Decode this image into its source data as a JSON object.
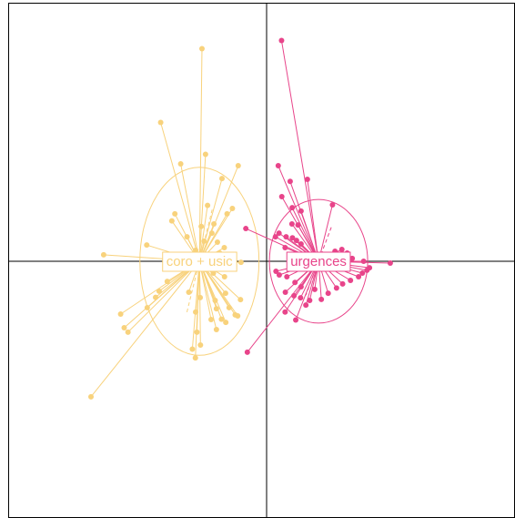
{
  "chart_data": {
    "type": "scatter",
    "title": "",
    "xlabel": "",
    "ylabel": "",
    "xlim": [
      -1.0,
      1.0
    ],
    "ylim": [
      -1.0,
      1.0
    ],
    "grid": false,
    "legend": "none",
    "axes_lines_at_zero": true,
    "groups": [
      {
        "label": "coro + usic",
        "color": "#f8d27c",
        "centroid": [
          -0.265,
          0.0
        ],
        "ellipse": {
          "rx": 0.235,
          "ry": 0.365,
          "angle_deg": 0
        },
        "points": [
          [
            -0.255,
            0.825
          ],
          [
            -0.418,
            0.539
          ],
          [
            -0.241,
            0.415
          ],
          [
            -0.112,
            0.371
          ],
          [
            -0.339,
            0.378
          ],
          [
            -0.176,
            0.321
          ],
          [
            -0.362,
            0.184
          ],
          [
            -0.374,
            0.157
          ],
          [
            -0.233,
            0.217
          ],
          [
            -0.135,
            0.205
          ],
          [
            -0.156,
            0.184
          ],
          [
            -0.208,
            0.145
          ],
          [
            -0.314,
            0.095
          ],
          [
            -0.258,
            0.135
          ],
          [
            -0.216,
            0.109
          ],
          [
            -0.194,
            0.074
          ],
          [
            -0.167,
            0.053
          ],
          [
            -0.247,
            0.078
          ],
          [
            -0.28,
            0.043
          ],
          [
            -0.473,
            0.063
          ],
          [
            -0.643,
            0.025
          ],
          [
            -0.223,
            0.025
          ],
          [
            -0.205,
            0.011
          ],
          [
            -0.185,
            0.032
          ],
          [
            -0.145,
            0.018
          ],
          [
            -0.127,
            0.004
          ],
          [
            -0.101,
            -0.004
          ],
          [
            -0.24,
            -0.032
          ],
          [
            -0.21,
            -0.046
          ],
          [
            -0.166,
            -0.06
          ],
          [
            -0.392,
            -0.078
          ],
          [
            -0.424,
            -0.116
          ],
          [
            -0.438,
            -0.14
          ],
          [
            -0.471,
            -0.18
          ],
          [
            -0.576,
            -0.205
          ],
          [
            -0.203,
            -0.152
          ],
          [
            -0.162,
            -0.124
          ],
          [
            -0.148,
            -0.18
          ],
          [
            -0.124,
            -0.208
          ],
          [
            -0.219,
            -0.226
          ],
          [
            -0.198,
            -0.184
          ],
          [
            -0.178,
            -0.225
          ],
          [
            -0.114,
            -0.212
          ],
          [
            -0.198,
            -0.265
          ],
          [
            -0.275,
            -0.275
          ],
          [
            -0.161,
            -0.237
          ],
          [
            -0.103,
            -0.149
          ],
          [
            -0.28,
            -0.197
          ],
          [
            -0.262,
            -0.141
          ],
          [
            -0.307,
            -0.12
          ],
          [
            -0.547,
            -0.275
          ],
          [
            -0.562,
            -0.258
          ],
          [
            -0.261,
            -0.325
          ],
          [
            -0.293,
            -0.341
          ],
          [
            -0.281,
            -0.375
          ],
          [
            -0.693,
            -0.526
          ]
        ]
      },
      {
        "label": "urgences",
        "color": "#e8448a",
        "centroid": [
          0.205,
          0.0
        ],
        "ellipse": {
          "rx": 0.194,
          "ry": 0.24,
          "angle_deg": 0
        },
        "points": [
          [
            0.059,
            0.857
          ],
          [
            0.046,
            0.371
          ],
          [
            0.093,
            0.31
          ],
          [
            0.06,
            0.251
          ],
          [
            0.161,
            0.318
          ],
          [
            0.101,
            0.208
          ],
          [
            0.136,
            0.195
          ],
          [
            0.26,
            0.219
          ],
          [
            0.1,
            0.145
          ],
          [
            0.124,
            0.141
          ],
          [
            -0.082,
            0.127
          ],
          [
            0.049,
            0.109
          ],
          [
            0.077,
            0.095
          ],
          [
            0.102,
            0.091
          ],
          [
            0.118,
            0.081
          ],
          [
            0.136,
            0.067
          ],
          [
            0.035,
            0.095
          ],
          [
            0.073,
            0.053
          ],
          [
            0.297,
            0.046
          ],
          [
            0.318,
            0.032
          ],
          [
            0.27,
            0.039
          ],
          [
            0.338,
            0.011
          ],
          [
            0.383,
            -0.0
          ],
          [
            0.488,
            -0.007
          ],
          [
            0.037,
            -0.039
          ],
          [
            0.05,
            -0.053
          ],
          [
            0.08,
            -0.06
          ],
          [
            0.112,
            -0.082
          ],
          [
            0.136,
            -0.099
          ],
          [
            0.074,
            -0.12
          ],
          [
            0.108,
            -0.134
          ],
          [
            0.134,
            -0.142
          ],
          [
            0.19,
            -0.109
          ],
          [
            0.155,
            -0.17
          ],
          [
            0.17,
            -0.152
          ],
          [
            0.216,
            -0.148
          ],
          [
            0.243,
            -0.124
          ],
          [
            0.276,
            -0.104
          ],
          [
            0.3,
            -0.088
          ],
          [
            0.331,
            -0.074
          ],
          [
            0.363,
            -0.06
          ],
          [
            0.378,
            -0.046
          ],
          [
            0.396,
            -0.035
          ],
          [
            0.406,
            -0.025
          ],
          [
            0.115,
            -0.228
          ],
          [
            0.073,
            -0.197
          ],
          [
            -0.076,
            -0.353
          ]
        ]
      }
    ]
  }
}
